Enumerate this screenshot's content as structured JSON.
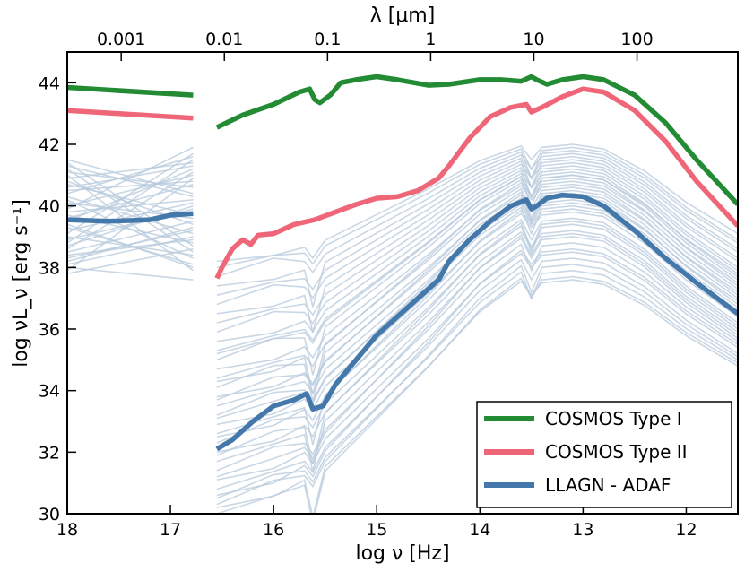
{
  "chart_data": {
    "type": "line",
    "title": "",
    "xlabel": "log ν [Hz]",
    "ylabel": "log νL_ν [erg s⁻¹]",
    "top_axis_label": "λ [μm]",
    "xlim": [
      18,
      11.5
    ],
    "ylim": [
      30,
      45
    ],
    "x_ticks": [
      18,
      17,
      16,
      15,
      14,
      13,
      12
    ],
    "y_ticks": [
      30,
      32,
      34,
      36,
      38,
      40,
      42,
      44
    ],
    "top_ticks": [
      {
        "label": "0.001",
        "log_nu": 17.477
      },
      {
        "label": "0.01",
        "log_nu": 16.477
      },
      {
        "label": "0.1",
        "log_nu": 15.477
      },
      {
        "label": "1",
        "log_nu": 14.477
      },
      {
        "label": "10",
        "log_nu": 13.477
      },
      {
        "label": "100",
        "log_nu": 12.477
      }
    ],
    "legend_position": "lower-right",
    "colors": {
      "cosmos_type1": "#228b34",
      "cosmos_type2": "#ee6677",
      "llagn": "#4477aa",
      "individual": "#b7c9dc"
    },
    "series": [
      {
        "name": "COSMOS Type I",
        "color_key": "cosmos_type1",
        "segments": [
          [
            [
              18.0,
              43.85
            ],
            [
              16.78,
              43.6
            ]
          ],
          [
            [
              16.55,
              42.55
            ],
            [
              16.3,
              42.95
            ],
            [
              16.0,
              43.3
            ],
            [
              15.75,
              43.7
            ],
            [
              15.65,
              43.8
            ],
            [
              15.6,
              43.45
            ],
            [
              15.55,
              43.35
            ],
            [
              15.45,
              43.6
            ],
            [
              15.35,
              44.0
            ],
            [
              15.2,
              44.1
            ],
            [
              15.0,
              44.2
            ],
            [
              14.8,
              44.1
            ],
            [
              14.5,
              43.92
            ],
            [
              14.3,
              43.95
            ],
            [
              14.0,
              44.1
            ],
            [
              13.8,
              44.1
            ],
            [
              13.6,
              44.05
            ],
            [
              13.5,
              44.2
            ],
            [
              13.45,
              44.1
            ],
            [
              13.35,
              43.95
            ],
            [
              13.2,
              44.1
            ],
            [
              13.0,
              44.2
            ],
            [
              12.8,
              44.1
            ],
            [
              12.5,
              43.6
            ],
            [
              12.2,
              42.7
            ],
            [
              11.9,
              41.5
            ],
            [
              11.5,
              40.05
            ]
          ]
        ]
      },
      {
        "name": "COSMOS Type II",
        "color_key": "cosmos_type2",
        "segments": [
          [
            [
              18.0,
              43.1
            ],
            [
              16.78,
              42.85
            ]
          ],
          [
            [
              16.55,
              37.65
            ],
            [
              16.5,
              38.0
            ],
            [
              16.4,
              38.6
            ],
            [
              16.3,
              38.9
            ],
            [
              16.22,
              38.75
            ],
            [
              16.15,
              39.05
            ],
            [
              16.0,
              39.1
            ],
            [
              15.8,
              39.4
            ],
            [
              15.6,
              39.55
            ],
            [
              15.4,
              39.8
            ],
            [
              15.2,
              40.05
            ],
            [
              15.0,
              40.25
            ],
            [
              14.8,
              40.3
            ],
            [
              14.6,
              40.5
            ],
            [
              14.4,
              40.9
            ],
            [
              14.3,
              41.3
            ],
            [
              14.1,
              42.2
            ],
            [
              13.9,
              42.9
            ],
            [
              13.7,
              43.2
            ],
            [
              13.55,
              43.3
            ],
            [
              13.5,
              43.05
            ],
            [
              13.4,
              43.2
            ],
            [
              13.2,
              43.55
            ],
            [
              13.0,
              43.8
            ],
            [
              12.8,
              43.7
            ],
            [
              12.5,
              43.1
            ],
            [
              12.2,
              42.1
            ],
            [
              11.9,
              40.8
            ],
            [
              11.5,
              39.35
            ]
          ]
        ]
      },
      {
        "name": "LLAGN - ADAF",
        "color_key": "llagn",
        "segments": [
          [
            [
              18.0,
              39.55
            ],
            [
              17.6,
              39.5
            ],
            [
              17.2,
              39.55
            ],
            [
              17.0,
              39.7
            ],
            [
              16.78,
              39.75
            ]
          ],
          [
            [
              16.55,
              32.1
            ],
            [
              16.4,
              32.4
            ],
            [
              16.2,
              33.0
            ],
            [
              16.0,
              33.5
            ],
            [
              15.8,
              33.7
            ],
            [
              15.68,
              33.9
            ],
            [
              15.62,
              33.4
            ],
            [
              15.52,
              33.5
            ],
            [
              15.4,
              34.2
            ],
            [
              15.2,
              35.0
            ],
            [
              15.0,
              35.8
            ],
            [
              14.8,
              36.4
            ],
            [
              14.6,
              37.0
            ],
            [
              14.4,
              37.6
            ],
            [
              14.3,
              38.2
            ],
            [
              14.1,
              38.9
            ],
            [
              13.9,
              39.5
            ],
            [
              13.7,
              40.0
            ],
            [
              13.55,
              40.2
            ],
            [
              13.5,
              39.9
            ],
            [
              13.45,
              40.0
            ],
            [
              13.35,
              40.25
            ],
            [
              13.2,
              40.35
            ],
            [
              13.0,
              40.3
            ],
            [
              12.8,
              40.0
            ],
            [
              12.5,
              39.2
            ],
            [
              12.2,
              38.3
            ],
            [
              11.9,
              37.5
            ],
            [
              11.5,
              36.5
            ]
          ]
        ]
      }
    ],
    "individual_sources": {
      "count": 38,
      "xray_left_start": [
        38.0,
        40.9,
        41.3,
        38.5,
        39.0,
        40.0,
        38.3,
        39.7,
        41.1,
        40.4,
        39.3,
        38.7,
        40.7,
        37.8,
        39.9,
        41.5,
        38.1,
        40.2,
        39.5,
        38.9,
        41.0,
        40.5,
        39.1,
        38.4,
        40.8,
        39.8,
        38.6,
        41.2,
        40.1,
        37.9,
        39.4,
        40.6,
        38.2,
        39.6,
        41.4,
        40.3,
        38.8,
        39.2
      ],
      "xray_right_end": [
        37.6,
        41.4,
        40.3,
        39.5,
        38.4,
        41.0,
        39.2,
        38.8,
        40.6,
        41.6,
        38.1,
        40.0,
        39.7,
        38.6,
        41.9,
        40.4,
        39.0,
        38.3,
        41.2,
        39.9,
        37.9,
        40.8,
        41.7,
        38.9,
        39.4,
        40.2,
        41.1,
        38.5,
        39.6,
        40.9,
        38.0,
        41.3,
        39.3,
        40.7,
        38.7,
        39.1,
        41.5,
        40.1
      ],
      "uv_start": [
        30.2,
        30.8,
        31.4,
        32.0,
        32.6,
        33.2,
        33.8,
        34.4,
        35.0,
        35.6,
        36.2,
        36.8,
        37.4,
        38.0,
        30.5,
        31.1,
        31.7,
        32.3,
        32.9,
        33.5,
        34.1,
        34.7,
        35.3,
        35.9,
        36.5,
        37.1,
        37.7,
        38.2,
        30.0,
        30.3,
        30.6,
        31.2,
        31.9,
        32.5,
        33.1,
        33.7,
        34.3,
        35.2
      ],
      "ir_peak": [
        37.6,
        38.3,
        38.8,
        39.2,
        39.6,
        40.0,
        40.3,
        40.6,
        40.9,
        41.1,
        41.3,
        41.5,
        41.7,
        41.9,
        37.9,
        38.5,
        39.0,
        39.4,
        39.8,
        40.1,
        40.4,
        40.7,
        41.0,
        41.2,
        41.4,
        41.6,
        41.8,
        42.0,
        37.7,
        38.1,
        38.6,
        39.1,
        39.5,
        39.9,
        40.2,
        40.5,
        40.8,
        41.0
      ],
      "radio_end": [
        34.8,
        35.2,
        35.6,
        35.9,
        36.2,
        36.5,
        36.8,
        37.1,
        37.4,
        37.7,
        38.0,
        38.3,
        38.6,
        38.9,
        35.0,
        35.4,
        35.7,
        36.0,
        36.4,
        36.7,
        37.0,
        37.3,
        37.6,
        37.9,
        38.2,
        38.5,
        38.8,
        39.1,
        34.9,
        35.1,
        35.5,
        35.8,
        36.1,
        36.6,
        36.9,
        37.2,
        37.5,
        37.8
      ]
    }
  }
}
